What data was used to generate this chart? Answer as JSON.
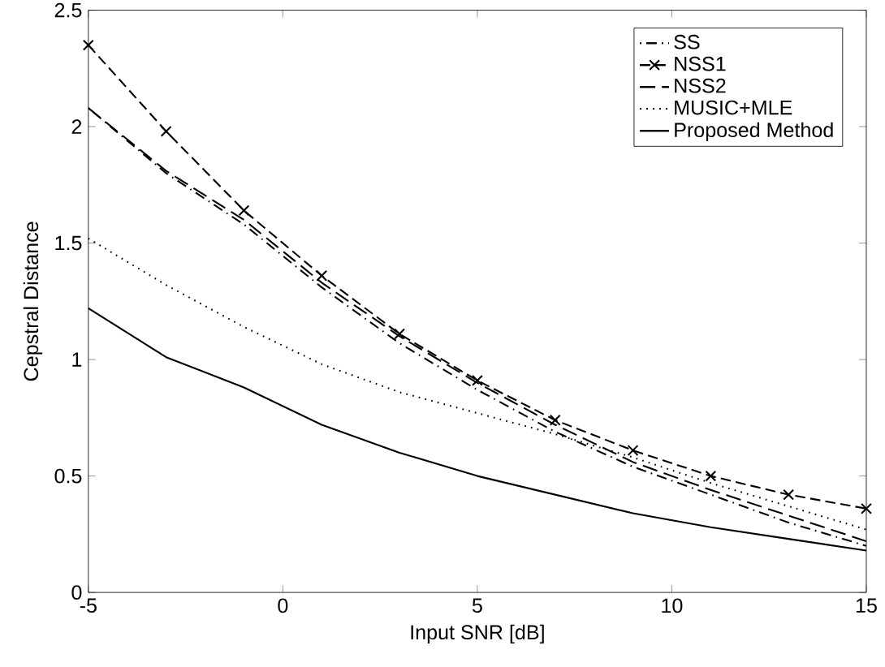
{
  "chart_data": {
    "type": "line",
    "xlabel": "Input SNR [dB]",
    "ylabel": "Cepstral Distance",
    "x": [
      -5,
      -3,
      -1,
      1,
      3,
      5,
      7,
      9,
      11,
      13,
      15
    ],
    "series": [
      {
        "name": "SS",
        "color": "#000000",
        "line_style": "dashdot",
        "marker": "none",
        "values": [
          2.08,
          1.8,
          1.58,
          1.31,
          1.07,
          0.87,
          0.69,
          0.54,
          0.42,
          0.3,
          0.2
        ]
      },
      {
        "name": "NSS1",
        "color": "#000000",
        "line_style": "dashed",
        "marker": "cross",
        "values": [
          2.35,
          1.98,
          1.64,
          1.36,
          1.11,
          0.91,
          0.74,
          0.61,
          0.5,
          0.42,
          0.36
        ]
      },
      {
        "name": "NSS2",
        "color": "#000000",
        "line_style": "longdashed",
        "marker": "none",
        "values": [
          2.08,
          1.81,
          1.6,
          1.33,
          1.1,
          0.9,
          0.72,
          0.56,
          0.44,
          0.33,
          0.22
        ]
      },
      {
        "name": "MUSIC+MLE",
        "color": "#000000",
        "line_style": "dotted",
        "marker": "none",
        "values": [
          1.52,
          1.32,
          1.14,
          0.98,
          0.86,
          0.77,
          0.68,
          0.58,
          0.47,
          0.37,
          0.27
        ]
      },
      {
        "name": "Proposed Method",
        "color": "#000000",
        "line_style": "solid",
        "marker": "none",
        "values": [
          1.22,
          1.01,
          0.88,
          0.72,
          0.6,
          0.5,
          0.42,
          0.34,
          0.28,
          0.23,
          0.18
        ]
      }
    ],
    "xlim": [
      -5,
      15
    ],
    "ylim": [
      0,
      2.5
    ],
    "xticks": [
      -5,
      0,
      5,
      10,
      15
    ],
    "yticks": [
      0,
      0.5,
      1,
      1.5,
      2,
      2.5
    ],
    "grid": false,
    "legend": "top right"
  }
}
